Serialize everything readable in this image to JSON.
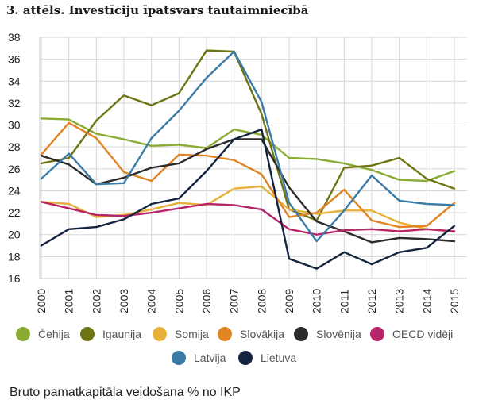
{
  "chart_data": {
    "type": "line",
    "title": "3. attēls. Investīciju īpatsvars tautaimniecībā",
    "note": "Bruto pamatkapitāla veidošana  % no IKP",
    "x": [
      2000,
      2001,
      2002,
      2003,
      2004,
      2005,
      2006,
      2007,
      2008,
      2009,
      2010,
      2011,
      2012,
      2013,
      2014,
      2015
    ],
    "ylim": [
      16,
      38
    ],
    "yticks": [
      16,
      18,
      20,
      22,
      24,
      26,
      28,
      30,
      32,
      34,
      36,
      38
    ],
    "grid": true,
    "legend_position": "bottom",
    "series": [
      {
        "name": "Čehija",
        "color": "#8bac33",
        "values": [
          30.6,
          30.5,
          29.2,
          28.7,
          28.1,
          28.2,
          27.9,
          29.6,
          29.1,
          27.0,
          26.9,
          26.5,
          25.9,
          25.0,
          24.9,
          25.8
        ]
      },
      {
        "name": "Igaunija",
        "color": "#6e7413",
        "values": [
          26.5,
          27.0,
          30.4,
          32.7,
          31.8,
          32.9,
          36.8,
          36.7,
          31.0,
          22.3,
          21.3,
          26.1,
          26.3,
          27.0,
          25.1,
          24.2
        ]
      },
      {
        "name": "Somija",
        "color": "#e8b13a",
        "values": [
          23.0,
          22.8,
          21.6,
          21.8,
          22.3,
          22.9,
          22.7,
          24.2,
          24.4,
          22.3,
          21.9,
          22.2,
          22.2,
          21.1,
          20.5,
          20.3
        ]
      },
      {
        "name": "Slovākija",
        "color": "#e08424",
        "values": [
          27.3,
          30.2,
          28.8,
          25.7,
          24.9,
          27.3,
          27.2,
          26.8,
          25.5,
          21.6,
          22.0,
          24.1,
          21.3,
          20.7,
          20.8,
          22.9
        ]
      },
      {
        "name": "Slovēnija",
        "color": "#2b2b29",
        "values": [
          27.2,
          26.4,
          24.6,
          25.2,
          26.1,
          26.5,
          27.8,
          28.7,
          28.7,
          24.3,
          21.2,
          20.3,
          19.3,
          19.7,
          19.6,
          19.4
        ]
      },
      {
        "name": "OECD vidēji",
        "color": "#b8246a",
        "values": [
          23.0,
          22.4,
          21.8,
          21.7,
          22.0,
          22.4,
          22.8,
          22.7,
          22.3,
          20.5,
          20.0,
          20.4,
          20.5,
          20.3,
          20.5,
          20.3
        ]
      },
      {
        "name": "Latvija",
        "color": "#3a7ca6",
        "values": [
          25.1,
          27.4,
          24.6,
          24.7,
          28.8,
          31.3,
          34.3,
          36.7,
          32.1,
          22.9,
          19.4,
          22.2,
          25.4,
          23.1,
          22.8,
          22.7
        ]
      },
      {
        "name": "Lietuva",
        "color": "#14233f",
        "values": [
          19.0,
          20.5,
          20.7,
          21.4,
          22.8,
          23.3,
          25.8,
          28.7,
          29.6,
          17.8,
          16.9,
          18.4,
          17.3,
          18.4,
          18.8,
          20.8
        ]
      }
    ]
  }
}
